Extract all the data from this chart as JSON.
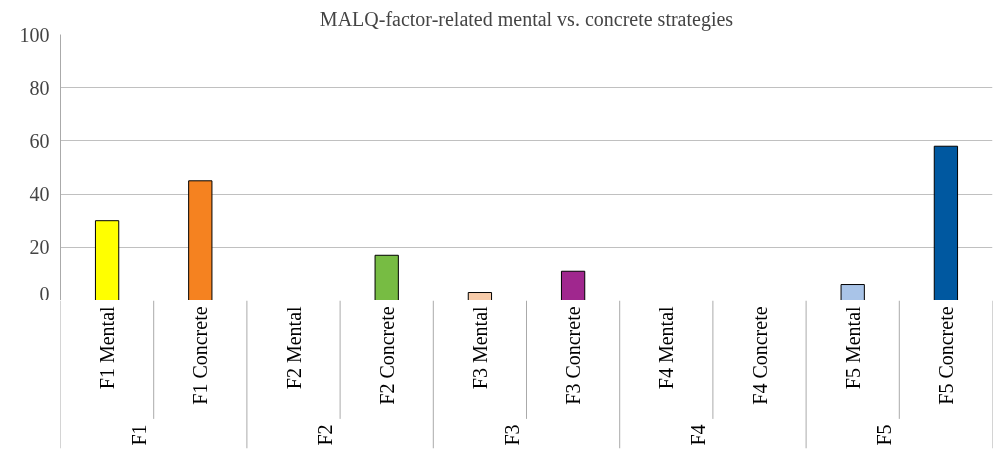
{
  "chart_data": {
    "type": "bar",
    "title": "MALQ-factor-related mental vs. concrete strategies",
    "categories": [
      "F1 Mental",
      "F1 Concrete",
      "F2 Mental",
      "F2 Concrete",
      "F3 Mental",
      "F3 Concrete",
      "F4 Mental",
      "F4 Concrete",
      "F5 Mental",
      "F5 Concrete"
    ],
    "values": [
      30,
      45,
      0,
      17,
      3,
      11,
      0,
      0,
      6,
      58
    ],
    "colors": [
      "#ffff00",
      "#f58220",
      null,
      "#77bc43",
      "#f7cba9",
      "#a0278e",
      null,
      null,
      "#a9c4e8",
      "#0058a0"
    ],
    "ylim": [
      0,
      100
    ],
    "yticks": [
      0,
      20,
      40,
      60,
      80,
      100
    ],
    "grid": "y",
    "annotations": [
      "F1",
      "F2",
      "F3",
      "F4",
      "F5"
    ]
  }
}
